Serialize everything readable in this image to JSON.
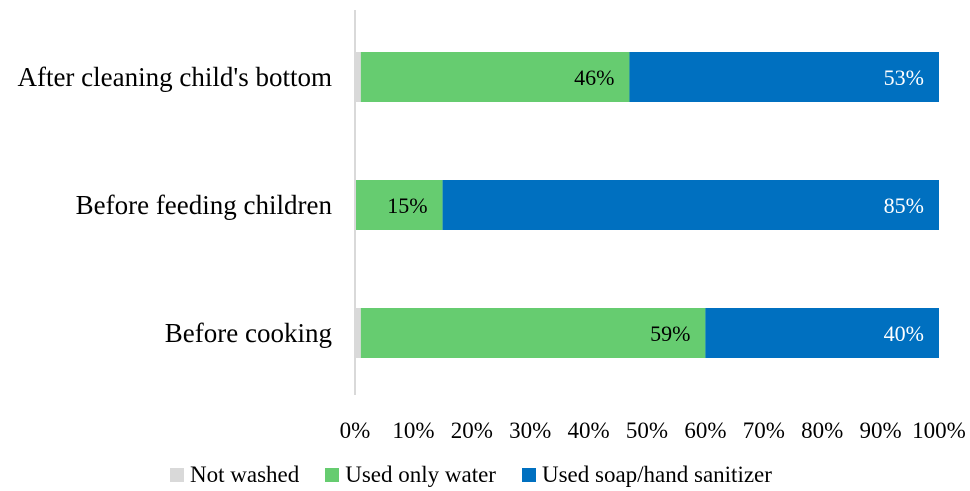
{
  "chart_data": {
    "type": "bar",
    "orientation": "horizontal",
    "stacked": true,
    "categories": [
      "After cleaning child's bottom",
      "Before feeding children",
      "Before cooking"
    ],
    "series": [
      {
        "name": "Not washed",
        "values": [
          1,
          0,
          1
        ],
        "labels": [
          "",
          "",
          ""
        ],
        "color": "#d9d9d9"
      },
      {
        "name": "Used only water",
        "values": [
          46,
          15,
          59
        ],
        "labels": [
          "46%",
          "15%",
          "59%"
        ],
        "color": "#66cc70"
      },
      {
        "name": "Used soap/hand sanitizer",
        "values": [
          53,
          85,
          40
        ],
        "labels": [
          "53%",
          "85%",
          "40%"
        ],
        "color": "#0070c0"
      }
    ],
    "xticks": [
      "0%",
      "10%",
      "20%",
      "30%",
      "40%",
      "50%",
      "60%",
      "70%",
      "80%",
      "90%",
      "100%"
    ],
    "xlim": [
      0,
      100
    ],
    "grid": false,
    "legend_position": "bottom",
    "data_label_colors": {
      "Used only water": "#000000",
      "Used soap/hand sanitizer": "#ffffff"
    }
  }
}
